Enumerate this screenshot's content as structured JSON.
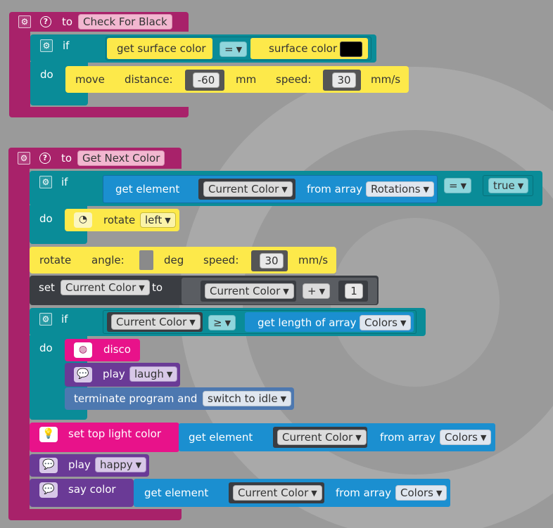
{
  "procedures": [
    {
      "keyword": "to",
      "name": "Check For Black",
      "if_label": "if",
      "do_label": "do",
      "condition": {
        "left": "get surface color",
        "operator": "=",
        "right": "surface color",
        "color_value": "#000000"
      },
      "move": {
        "label": "move",
        "distance_label": "distance:",
        "distance_value": "-60",
        "distance_unit": "mm",
        "speed_label": "speed:",
        "speed_value": "30",
        "speed_unit": "mm/s"
      }
    },
    {
      "keyword": "to",
      "name": "Get Next Color",
      "if1": {
        "if_label": "if",
        "do_label": "do",
        "get_element": "get element",
        "variable": "Current Color",
        "from_array": "from array",
        "array": "Rotations",
        "operator": "=",
        "value": "true",
        "rotate_label": "rotate",
        "rotate_dir": "left"
      },
      "rotate_angle": {
        "label": "rotate",
        "angle_label": "angle:",
        "angle_unit": "deg",
        "speed_label": "speed:",
        "speed_value": "30",
        "speed_unit": "mm/s"
      },
      "set": {
        "label": "set",
        "variable": "Current Color",
        "to_label": "to",
        "expr_variable": "Current Color",
        "operator": "+",
        "operand": "1"
      },
      "if2": {
        "if_label": "if",
        "do_label": "do",
        "variable": "Current Color",
        "operator": "≥",
        "length_label": "get length of array",
        "array": "Colors",
        "disco": "disco",
        "play_label": "play",
        "play_sound": "laugh",
        "terminate_label": "terminate program and",
        "terminate_option": "switch to idle"
      },
      "top_light": {
        "label": "set top light color",
        "get_element": "get element",
        "variable": "Current Color",
        "from_array": "from array",
        "array": "Colors"
      },
      "play_happy": {
        "label": "play",
        "sound": "happy"
      },
      "say_color": {
        "label": "say color",
        "get_element": "get element",
        "variable": "Current Color",
        "from_array": "from array",
        "array": "Colors"
      }
    }
  ],
  "icons": {
    "gear": "gear-icon",
    "help": "help-icon",
    "speech": "speech-bubble-icon",
    "bulb": "light-bulb-icon",
    "disco": "disco-ball-icon",
    "rotate": "rotate-icon"
  },
  "colors": {
    "procedure": "#a8226a",
    "control": "#0a8c98",
    "sensor_yellow": "#fde94a",
    "array_blue": "#1b8fd0",
    "variables_dark": "#3a3d42",
    "light_pink": "#e8128a",
    "sound_purple": "#6a3a96",
    "program_slate": "#4d78b0",
    "background": "#9a9a9a"
  }
}
